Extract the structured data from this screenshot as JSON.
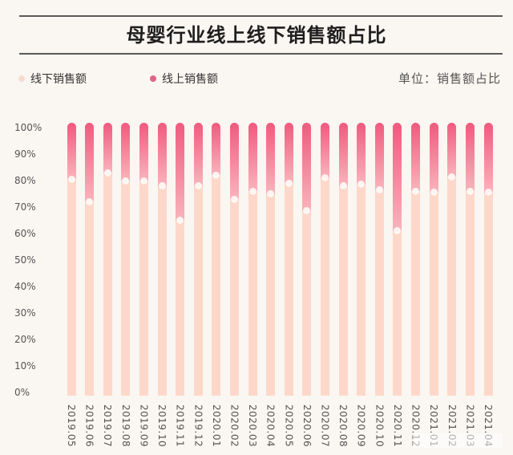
{
  "header": {
    "title": "母婴行业线上线下销售额占比"
  },
  "legend": {
    "items": [
      {
        "label": "线下销售额",
        "color": "#f6dccf"
      },
      {
        "label": "线上销售额",
        "color": "#e0648a"
      }
    ],
    "unit": "单位：销售额占比"
  },
  "colors": {
    "background": "#faf6f1",
    "offline": "#fdd8ca",
    "online_top": "#f05a7e",
    "online_bottom": "#f9b4bc",
    "marker": "#fffaf6",
    "rule": "#5a5a5a"
  },
  "chart_data": {
    "type": "bar",
    "stacked": true,
    "title": "母婴行业线上线下销售额占比",
    "xlabel": "",
    "ylabel": "单位：销售额占比",
    "ylim": [
      0,
      100
    ],
    "yticks": [
      "0%",
      "10%",
      "20%",
      "30%",
      "40%",
      "50%",
      "60%",
      "70%",
      "80%",
      "90%",
      "100%"
    ],
    "grid": false,
    "legend_position": "top-left",
    "categories": [
      "2019.05",
      "2019.06",
      "2019.07",
      "2019.08",
      "2019.09",
      "2019.10",
      "2019.11",
      "2019.12",
      "2020.01",
      "2020.02",
      "2020.03",
      "2020.04",
      "2020.05",
      "2020.06",
      "2020.07",
      "2020.08",
      "2020.09",
      "2020.10",
      "2020.11",
      "2020.12",
      "2021.01",
      "2021.02",
      "2021.03",
      "2021.04"
    ],
    "series": [
      {
        "name": "线下销售额",
        "values": [
          80.5,
          72,
          83,
          80,
          80,
          78,
          65,
          78,
          82,
          73,
          76,
          75,
          79,
          68.5,
          81,
          78,
          78.5,
          76.5,
          61,
          76,
          75.5,
          81.5,
          76,
          75.5
        ]
      },
      {
        "name": "线上销售额",
        "values": [
          19.5,
          28,
          17,
          20,
          20,
          22,
          35,
          22,
          18,
          27,
          24,
          25,
          21,
          31.5,
          19,
          22,
          21.5,
          23.5,
          39,
          24,
          24.5,
          18.5,
          24,
          24.5
        ]
      }
    ]
  }
}
